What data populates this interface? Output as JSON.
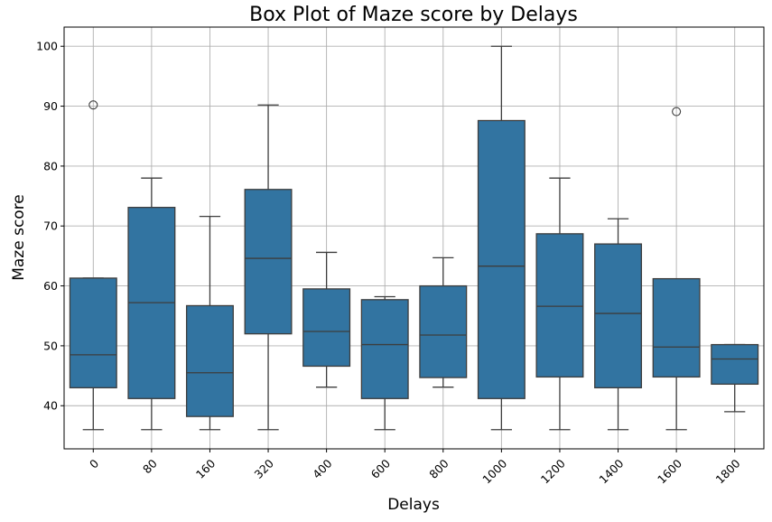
{
  "chart_data": {
    "type": "box",
    "title": "Box Plot of Maze score by Delays",
    "xlabel": "Delays",
    "ylabel": "Maze score",
    "ylim": [
      32.8,
      103.2
    ],
    "yticks": [
      40,
      50,
      60,
      70,
      80,
      90,
      100
    ],
    "grid": true,
    "box_color": "#3274a1",
    "line_color": "#3d3d3d",
    "categories": [
      "0",
      "80",
      "160",
      "320",
      "400",
      "600",
      "800",
      "1000",
      "1200",
      "1400",
      "1600",
      "1800"
    ],
    "boxes": [
      {
        "whisker_low": 36,
        "q1": 43.0,
        "median": 48.5,
        "q3": 61.3,
        "whisker_high": 61.3,
        "outliers": [
          90.2
        ]
      },
      {
        "whisker_low": 36,
        "q1": 41.2,
        "median": 57.2,
        "q3": 73.1,
        "whisker_high": 78.0,
        "outliers": []
      },
      {
        "whisker_low": 36,
        "q1": 38.2,
        "median": 45.5,
        "q3": 56.7,
        "whisker_high": 71.6,
        "outliers": []
      },
      {
        "whisker_low": 36,
        "q1": 52.0,
        "median": 64.6,
        "q3": 76.1,
        "whisker_high": 90.2,
        "outliers": []
      },
      {
        "whisker_low": 43.1,
        "q1": 46.6,
        "median": 52.4,
        "q3": 59.5,
        "whisker_high": 65.6,
        "outliers": []
      },
      {
        "whisker_low": 36,
        "q1": 41.2,
        "median": 50.2,
        "q3": 57.7,
        "whisker_high": 58.2,
        "outliers": []
      },
      {
        "whisker_low": 43.1,
        "q1": 44.7,
        "median": 51.8,
        "q3": 60.0,
        "whisker_high": 64.7,
        "outliers": []
      },
      {
        "whisker_low": 36,
        "q1": 41.2,
        "median": 63.3,
        "q3": 87.6,
        "whisker_high": 100.0,
        "outliers": []
      },
      {
        "whisker_low": 36,
        "q1": 44.8,
        "median": 56.6,
        "q3": 68.7,
        "whisker_high": 78.0,
        "outliers": []
      },
      {
        "whisker_low": 36,
        "q1": 43.0,
        "median": 55.4,
        "q3": 67.0,
        "whisker_high": 71.2,
        "outliers": []
      },
      {
        "whisker_low": 36,
        "q1": 44.8,
        "median": 49.8,
        "q3": 61.2,
        "whisker_high": 61.2,
        "outliers": [
          89.1
        ]
      },
      {
        "whisker_low": 39.0,
        "q1": 43.6,
        "median": 47.8,
        "q3": 50.2,
        "whisker_high": 50.2,
        "outliers": []
      }
    ]
  }
}
